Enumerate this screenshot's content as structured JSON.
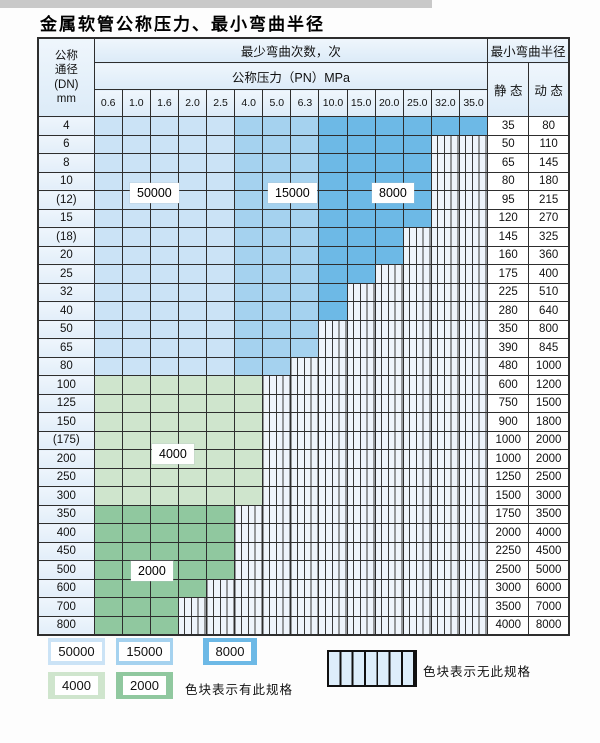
{
  "title": "金属软管公称压力、最小弯曲半径",
  "colors": {
    "c50000": "#cbe3f6",
    "c15000": "#a5d2ef",
    "c8000": "#6db9e6",
    "c4000": "#cfe5cd",
    "c2000": "#90c89f",
    "stripe_bg": "#eef4fb",
    "stripe_line": "#3a3a3a",
    "grid": "#2e2e2e",
    "legend_stripe_cell": "#ddeefb"
  },
  "table": {
    "header": {
      "dn_lines": "公称\n通径\n(DN)\nmm",
      "cycles_title": "最少弯曲次数，次",
      "pressure_title": "公称压力（PN）MPa",
      "pressures": [
        "0.6",
        "1.0",
        "1.6",
        "2.0",
        "2.5",
        "4.0",
        "5.0",
        "6.3",
        "10.0",
        "15.0",
        "20.0",
        "25.0",
        "32.0",
        "35.0"
      ],
      "radius_title": "最小弯曲半径",
      "static_label": "静 态",
      "dynamic_label": "动 态"
    },
    "blue_bands": [
      {
        "max_col": 4,
        "cycles": "50000",
        "color": "c50000"
      },
      {
        "max_col": 7,
        "cycles": "15000",
        "color": "c15000"
      },
      {
        "max_col": 13,
        "cycles": "8000",
        "color": "c8000"
      }
    ],
    "green_bands": {
      "4000": "c4000",
      "2000": "c2000"
    },
    "rows": [
      {
        "dn": "4",
        "band": "blue",
        "colored_to": 13,
        "static": "35",
        "dynamic": "80"
      },
      {
        "dn": "6",
        "band": "blue",
        "colored_to": 11,
        "static": "50",
        "dynamic": "110"
      },
      {
        "dn": "8",
        "band": "blue",
        "colored_to": 11,
        "static": "65",
        "dynamic": "145"
      },
      {
        "dn": "10",
        "band": "blue",
        "colored_to": 11,
        "static": "80",
        "dynamic": "180"
      },
      {
        "dn": "(12)",
        "band": "blue",
        "colored_to": 11,
        "static": "95",
        "dynamic": "215"
      },
      {
        "dn": "15",
        "band": "blue",
        "colored_to": 11,
        "static": "120",
        "dynamic": "270"
      },
      {
        "dn": "(18)",
        "band": "blue",
        "colored_to": 10,
        "static": "145",
        "dynamic": "325"
      },
      {
        "dn": "20",
        "band": "blue",
        "colored_to": 10,
        "static": "160",
        "dynamic": "360"
      },
      {
        "dn": "25",
        "band": "blue",
        "colored_to": 9,
        "static": "175",
        "dynamic": "400"
      },
      {
        "dn": "32",
        "band": "blue",
        "colored_to": 8,
        "static": "225",
        "dynamic": "510"
      },
      {
        "dn": "40",
        "band": "blue",
        "colored_to": 8,
        "static": "280",
        "dynamic": "640"
      },
      {
        "dn": "50",
        "band": "blue",
        "colored_to": 7,
        "static": "350",
        "dynamic": "800"
      },
      {
        "dn": "65",
        "band": "blue",
        "colored_to": 7,
        "static": "390",
        "dynamic": "845"
      },
      {
        "dn": "80",
        "band": "blue",
        "colored_to": 6,
        "static": "480",
        "dynamic": "1000"
      },
      {
        "dn": "100",
        "band": "4000",
        "colored_to": 5,
        "static": "600",
        "dynamic": "1200"
      },
      {
        "dn": "125",
        "band": "4000",
        "colored_to": 5,
        "static": "750",
        "dynamic": "1500"
      },
      {
        "dn": "150",
        "band": "4000",
        "colored_to": 5,
        "static": "900",
        "dynamic": "1800"
      },
      {
        "dn": "(175)",
        "band": "4000",
        "colored_to": 5,
        "static": "1000",
        "dynamic": "2000"
      },
      {
        "dn": "200",
        "band": "4000",
        "colored_to": 5,
        "static": "1000",
        "dynamic": "2000"
      },
      {
        "dn": "250",
        "band": "4000",
        "colored_to": 5,
        "static": "1250",
        "dynamic": "2500"
      },
      {
        "dn": "300",
        "band": "4000",
        "colored_to": 5,
        "static": "1500",
        "dynamic": "3000"
      },
      {
        "dn": "350",
        "band": "2000",
        "colored_to": 4,
        "static": "1750",
        "dynamic": "3500"
      },
      {
        "dn": "400",
        "band": "2000",
        "colored_to": 4,
        "static": "2000",
        "dynamic": "4000"
      },
      {
        "dn": "450",
        "band": "2000",
        "colored_to": 4,
        "static": "2250",
        "dynamic": "4500"
      },
      {
        "dn": "500",
        "band": "2000",
        "colored_to": 4,
        "static": "2500",
        "dynamic": "5000"
      },
      {
        "dn": "600",
        "band": "2000",
        "colored_to": 3,
        "static": "3000",
        "dynamic": "6000"
      },
      {
        "dn": "700",
        "band": "2000",
        "colored_to": 2,
        "static": "3500",
        "dynamic": "7000"
      },
      {
        "dn": "800",
        "band": "2000",
        "colored_to": 2,
        "static": "4000",
        "dynamic": "8000"
      }
    ]
  },
  "overlays": {
    "l50000": "50000",
    "l15000": "15000",
    "l8000": "8000",
    "l4000": "4000",
    "l2000": "2000"
  },
  "legend": {
    "sw50000": "50000",
    "sw15000": "15000",
    "sw8000": "8000",
    "sw4000": "4000",
    "sw2000": "2000",
    "has_spec_text": "色块表示有此规格",
    "no_spec_text": "色块表示无此规格"
  }
}
